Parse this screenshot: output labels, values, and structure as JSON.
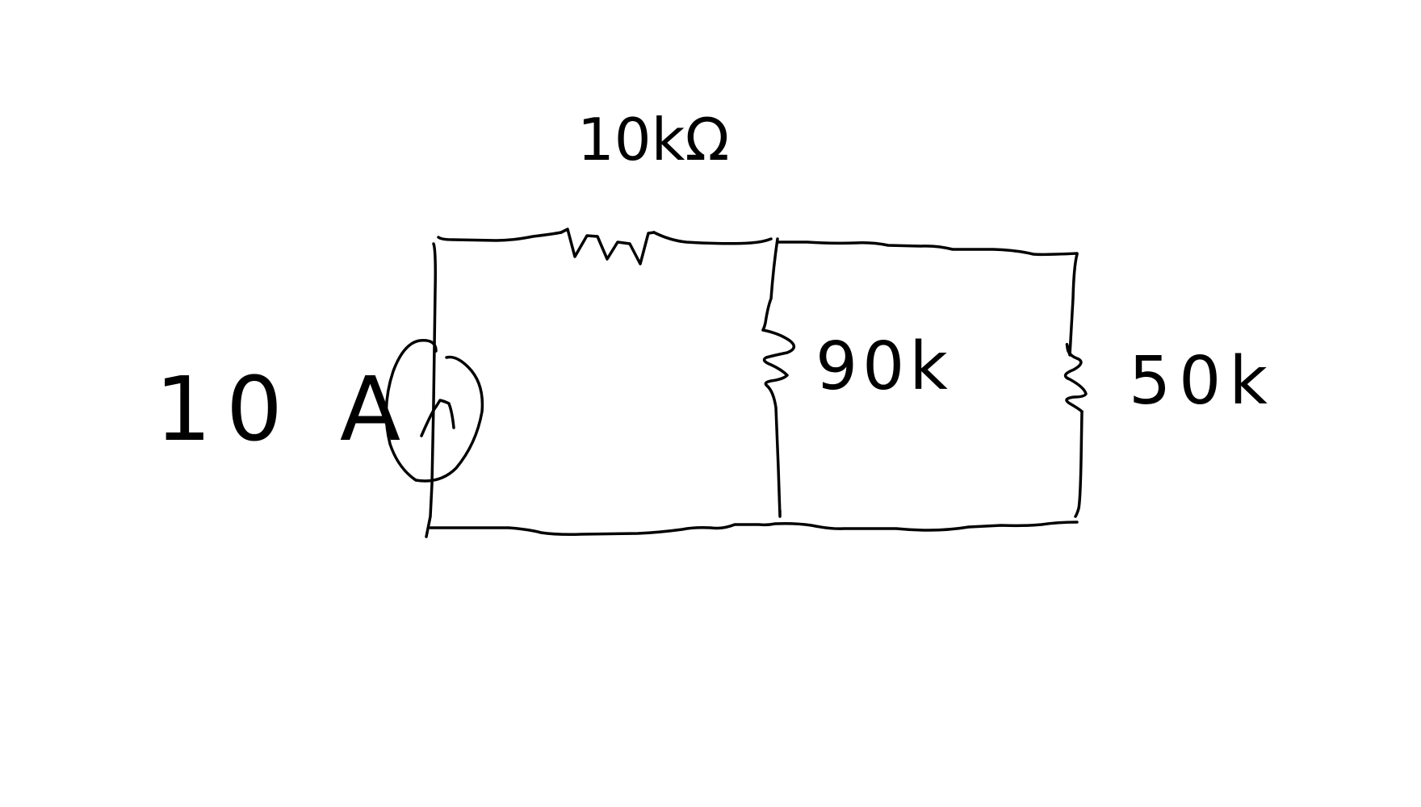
{
  "diagram": {
    "labels": {
      "source_current": "10 A",
      "series_resistor": "10kΩ",
      "shunt_resistor_1": "90k",
      "shunt_resistor_2": "50k"
    },
    "colors": {
      "ink": "#000000",
      "background": "#ffffff"
    }
  }
}
